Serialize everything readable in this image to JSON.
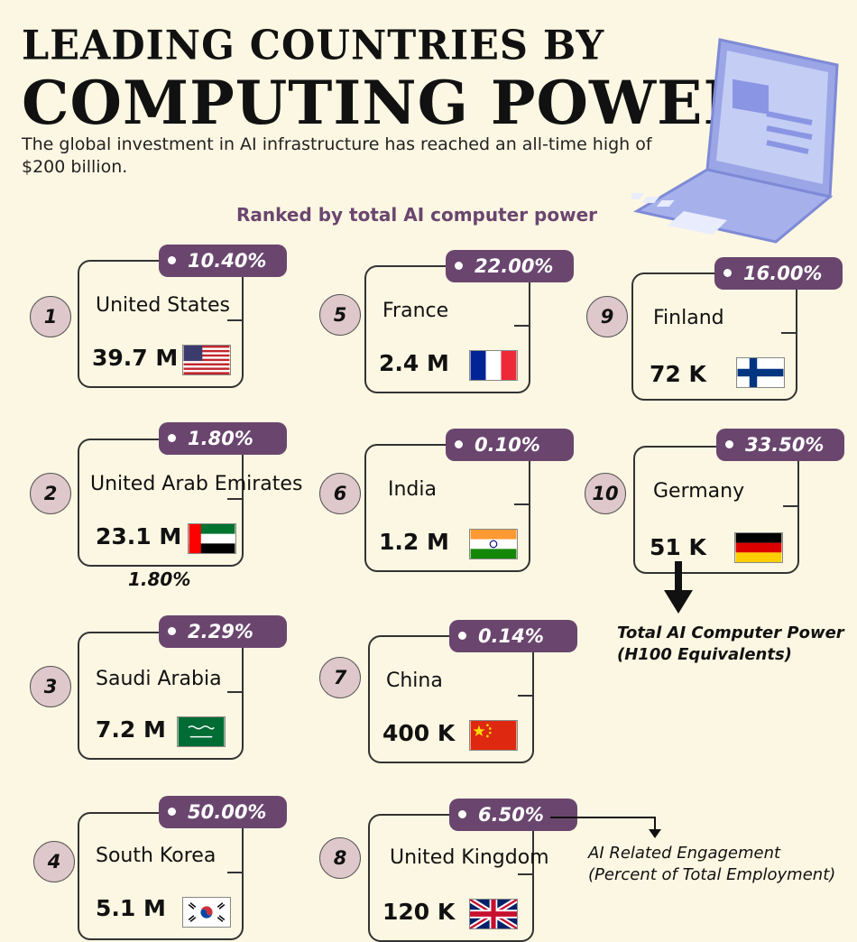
{
  "header": {
    "title_line1": "LEADING COUNTRIES BY",
    "title_line2": "COMPUTING POWER",
    "subtitle": "The global investment in AI infrastructure has reached an all-time high of $200 billion.",
    "ranked_label": "Ranked by total AI computer power"
  },
  "chart_data": {
    "type": "table",
    "title": "LEADING COUNTRIES BY COMPUTING POWER",
    "subtitle": "Ranked by total AI computer power",
    "metric_label": "Total AI Computer Power (H100 Equivalents)",
    "secondary_metric_label": "AI Related Engagement (Percent of Total Employment)",
    "rows": [
      {
        "rank": "1",
        "country": "United States",
        "power": "39.7 M",
        "power_value": 39700000,
        "engagement": "10.40%",
        "engagement_value": 10.4,
        "flag": "us-flag"
      },
      {
        "rank": "2",
        "country": "United Arab Emirates",
        "power": "23.1 M",
        "power_value": 23100000,
        "engagement": "1.80%",
        "engagement_value": 1.8,
        "flag": "uae-flag"
      },
      {
        "rank": "3",
        "country": "Saudi Arabia",
        "power": "7.2 M",
        "power_value": 7200000,
        "engagement": "2.29%",
        "engagement_value": 2.29,
        "flag": "saudi-flag"
      },
      {
        "rank": "4",
        "country": "South Korea",
        "power": "5.1 M",
        "power_value": 5100000,
        "engagement": "50.00%",
        "engagement_value": 50.0,
        "flag": "korea-flag"
      },
      {
        "rank": "5",
        "country": "France",
        "power": "2.4 M",
        "power_value": 2400000,
        "engagement": "22.00%",
        "engagement_value": 22.0,
        "flag": "france-flag"
      },
      {
        "rank": "6",
        "country": "India",
        "power": "1.2 M",
        "power_value": 1200000,
        "engagement": "0.10%",
        "engagement_value": 0.1,
        "flag": "india-flag"
      },
      {
        "rank": "7",
        "country": "China",
        "power": "400 K",
        "power_value": 400000,
        "engagement": "0.14%",
        "engagement_value": 0.14,
        "flag": "china-flag"
      },
      {
        "rank": "8",
        "country": "United Kingdom",
        "power": "120 K",
        "power_value": 120000,
        "engagement": "6.50%",
        "engagement_value": 6.5,
        "flag": "uk-flag"
      },
      {
        "rank": "9",
        "country": "Finland",
        "power": "72 K",
        "power_value": 72000,
        "engagement": "16.00%",
        "engagement_value": 16.0,
        "flag": "finland-flag"
      },
      {
        "rank": "10",
        "country": "Germany",
        "power": "51 K",
        "power_value": 51000,
        "engagement": "33.50%",
        "engagement_value": 33.5,
        "flag": "germany-flag"
      }
    ],
    "annotations": {
      "uae_extra_percent": "1.80%",
      "legend_power_line1": "Total AI Computer Power",
      "legend_power_line2": "(H100 Equivalents)",
      "legend_employment_line1": "AI Related Engagement",
      "legend_employment_line2": "(Percent of Total Employment)"
    }
  },
  "colors": {
    "background": "#fcf7e2",
    "accent": "#6a466f",
    "rank_circle": "#dfc8cc",
    "laptop": "#9aa6e6"
  }
}
